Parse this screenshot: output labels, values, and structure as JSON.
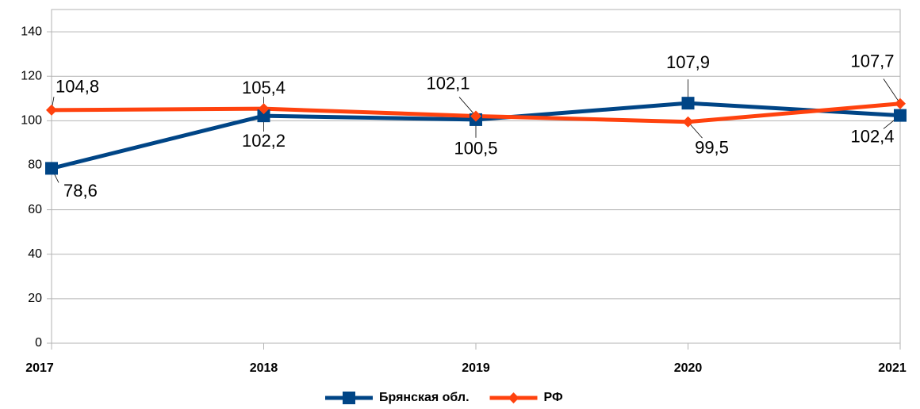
{
  "chart_data": {
    "type": "line",
    "categories": [
      "2017",
      "2018",
      "2019",
      "2020",
      "2021"
    ],
    "series": [
      {
        "name": "Брянская обл.",
        "color": "#004586",
        "values": [
          78.6,
          102.2,
          100.5,
          107.9,
          102.4
        ],
        "value_labels": [
          "78,6",
          "102,2",
          "100,5",
          "107,9",
          "102,4"
        ]
      },
      {
        "name": "РФ",
        "color": "#ff420e",
        "values": [
          104.8,
          105.4,
          102.1,
          99.5,
          107.7
        ],
        "value_labels": [
          "104,8",
          "105,4",
          "102,1",
          "99,5",
          "107,7"
        ]
      }
    ],
    "ylim": [
      0,
      150
    ],
    "yticks": [
      0,
      20,
      40,
      60,
      80,
      100,
      120,
      140
    ],
    "grid": true,
    "legend": "bottom"
  }
}
